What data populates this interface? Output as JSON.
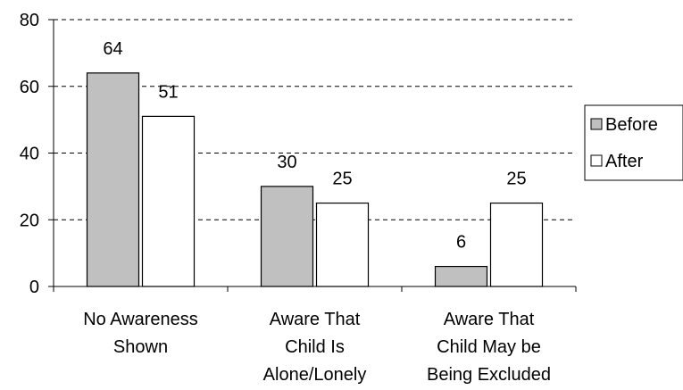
{
  "chart_data": {
    "type": "bar",
    "title": "",
    "xlabel": "",
    "ylabel": "",
    "ylim": [
      0,
      80
    ],
    "yticks": [
      0,
      20,
      40,
      60,
      80
    ],
    "grid": "horizontal dashed",
    "legend_position": "right",
    "categories": [
      [
        "No Awareness",
        "Shown"
      ],
      [
        "Aware That",
        "Child Is",
        "Alone/Lonely"
      ],
      [
        "Aware That",
        "Child May be",
        "Being Excluded"
      ]
    ],
    "series": [
      {
        "name": "Before",
        "values": [
          64,
          30,
          6
        ],
        "color": "#c0c0c0"
      },
      {
        "name": "After",
        "values": [
          51,
          25,
          25
        ],
        "color": "#ffffff"
      }
    ]
  }
}
